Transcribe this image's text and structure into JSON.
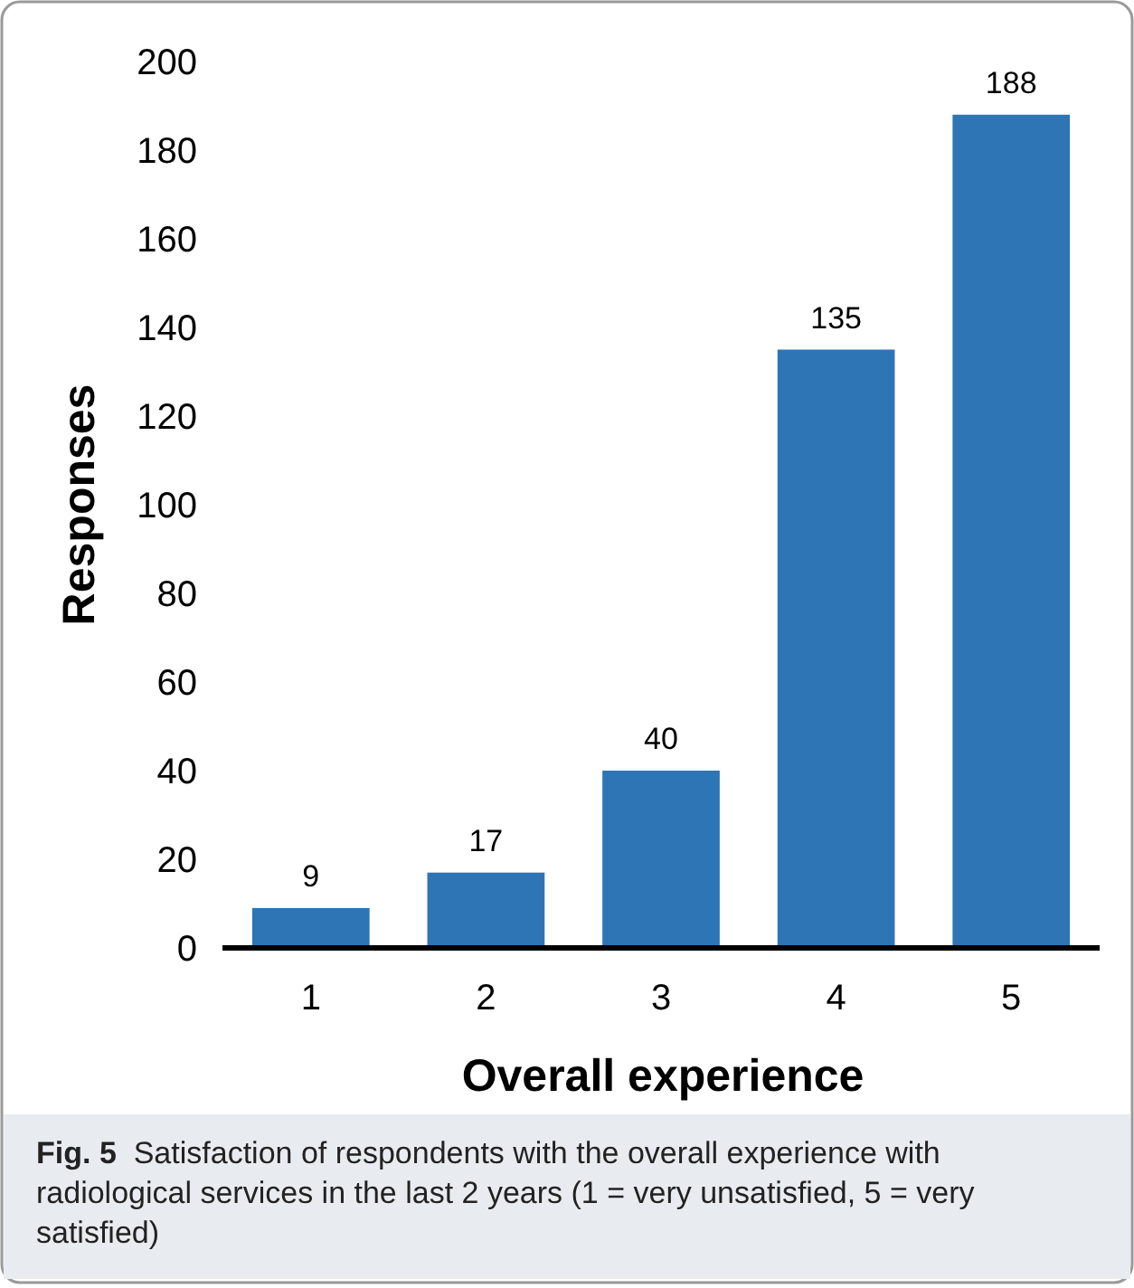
{
  "chart_data": {
    "type": "bar",
    "xlabel": "Overall experience",
    "ylabel": "Responses",
    "categories": [
      "1",
      "2",
      "3",
      "4",
      "5"
    ],
    "values": [
      9,
      17,
      40,
      135,
      188
    ],
    "color": "#2e75b6",
    "ylim": [
      0,
      200
    ],
    "yticks": [
      0,
      20,
      40,
      60,
      80,
      100,
      120,
      140,
      160,
      180,
      200
    ],
    "data_labels": true,
    "annotations": [
      "Fig. 5",
      "Satisfaction of respondents with the overall experience with radiological services in the last 2 years (1 = very unsatisfied, 5 = very satisfied)"
    ]
  }
}
